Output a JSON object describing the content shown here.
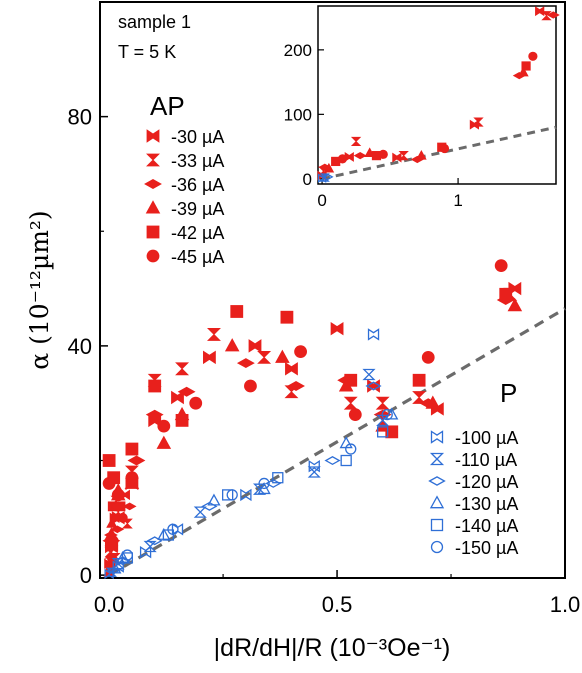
{
  "chart_data": [
    {
      "type": "scatter",
      "title": "",
      "annotations": [
        "sample 1",
        "T = 5 K"
      ],
      "xlabel": "|dR/dH|/R (10⁻³Oe⁻¹)",
      "ylabel": "α (10⁻¹²µm²)",
      "xlim": [
        -0.02,
        1.0
      ],
      "ylim": [
        -0.5,
        100
      ],
      "xticks": [
        0.0,
        0.5,
        1.0
      ],
      "xtick_labels": [
        "0.0",
        "0.5",
        "1.0"
      ],
      "yticks": [
        0,
        40,
        80
      ],
      "ytick_labels": [
        "0",
        "40",
        "80"
      ],
      "grid": false,
      "colors": {
        "AP": "#e8201c",
        "P": "#2f6fd6",
        "fit": "#6b6b6b"
      },
      "legend_groups": [
        {
          "title": "AP",
          "entries": [
            {
              "label": "-30 µA",
              "marker": "bowtie-v-filled"
            },
            {
              "label": "-33 µA",
              "marker": "hourglass-filled"
            },
            {
              "label": "-36 µA",
              "marker": "diamond-filled"
            },
            {
              "label": "-39 µA",
              "marker": "triangle-filled"
            },
            {
              "label": "-42 µA",
              "marker": "square-filled"
            },
            {
              "label": "-45 µA",
              "marker": "circle-filled"
            }
          ]
        },
        {
          "title": "P",
          "entries": [
            {
              "label": "-100 µA",
              "marker": "bowtie-v-open"
            },
            {
              "label": "-110 µA",
              "marker": "hourglass-open"
            },
            {
              "label": "-120 µA",
              "marker": "diamond-open"
            },
            {
              "label": "-130 µA",
              "marker": "triangle-open"
            },
            {
              "label": "-140 µA",
              "marker": "square-open"
            },
            {
              "label": "-150 µA",
              "marker": "circle-open"
            }
          ]
        }
      ],
      "fit_line": {
        "style": "dashed",
        "x": [
          0.0,
          1.0
        ],
        "y": [
          0.0,
          46.5
        ]
      },
      "series": [
        {
          "name": "-30 µA",
          "group": "AP",
          "points": [
            [
              0.005,
              5
            ],
            [
              0.02,
              10
            ],
            [
              0.05,
              16
            ],
            [
              0.1,
              27
            ],
            [
              0.15,
              31
            ],
            [
              0.22,
              38
            ],
            [
              0.32,
              40
            ],
            [
              0.4,
              36
            ],
            [
              0.5,
              43
            ],
            [
              0.58,
              33
            ],
            [
              0.72,
              29
            ],
            [
              0.89,
              50
            ]
          ]
        },
        {
          "name": "-33 µA",
          "group": "AP",
          "points": [
            [
              0.005,
              4
            ],
            [
              0.02,
              11
            ],
            [
              0.05,
              18
            ],
            [
              0.1,
              34
            ],
            [
              0.16,
              36
            ],
            [
              0.23,
              42
            ],
            [
              0.34,
              38
            ],
            [
              0.4,
              32
            ],
            [
              0.53,
              30
            ],
            [
              0.6,
              30
            ],
            [
              0.68,
              31
            ],
            [
              0.88,
              49
            ]
          ]
        },
        {
          "name": "-36 µA",
          "group": "AP",
          "points": [
            [
              0.005,
              6
            ],
            [
              0.02,
              12
            ],
            [
              0.06,
              20
            ],
            [
              0.1,
              28
            ],
            [
              0.17,
              32
            ],
            [
              0.3,
              37
            ],
            [
              0.41,
              33
            ],
            [
              0.52,
              34
            ],
            [
              0.6,
              28
            ],
            [
              0.7,
              30
            ],
            [
              0.87,
              48
            ]
          ]
        },
        {
          "name": "-39 µA",
          "group": "AP",
          "points": [
            [
              0.005,
              7
            ],
            [
              0.02,
              14
            ],
            [
              0.05,
              16
            ],
            [
              0.12,
              23
            ],
            [
              0.16,
              28
            ],
            [
              0.27,
              40
            ],
            [
              0.38,
              38
            ],
            [
              0.52,
              33
            ],
            [
              0.6,
              26
            ],
            [
              0.71,
              30
            ],
            [
              0.89,
              47
            ]
          ]
        },
        {
          "name": "-42 µA",
          "group": "AP",
          "points": [
            [
              0.0,
              20
            ],
            [
              0.01,
              17
            ],
            [
              0.05,
              22
            ],
            [
              0.1,
              33
            ],
            [
              0.16,
              27
            ],
            [
              0.28,
              46
            ],
            [
              0.39,
              45
            ],
            [
              0.53,
              34
            ],
            [
              0.62,
              25
            ],
            [
              0.68,
              34
            ],
            [
              0.87,
              49
            ]
          ]
        },
        {
          "name": "-45 µA",
          "group": "AP",
          "points": [
            [
              0.0,
              16
            ],
            [
              0.02,
              14
            ],
            [
              0.05,
              17
            ],
            [
              0.12,
              26
            ],
            [
              0.19,
              30
            ],
            [
              0.31,
              33
            ],
            [
              0.42,
              39
            ],
            [
              0.54,
              28
            ],
            [
              0.7,
              38
            ],
            [
              0.86,
              54
            ]
          ]
        },
        {
          "name": "-100 µA",
          "group": "P",
          "points": [
            [
              0.02,
              1.5
            ],
            [
              0.08,
              4
            ],
            [
              0.15,
              8
            ],
            [
              0.3,
              14
            ],
            [
              0.45,
              19
            ],
            [
              0.58,
              42
            ]
          ]
        },
        {
          "name": "-110 µA",
          "group": "P",
          "points": [
            [
              0.02,
              2
            ],
            [
              0.09,
              5
            ],
            [
              0.2,
              11
            ],
            [
              0.33,
              15
            ],
            [
              0.45,
              18
            ],
            [
              0.57,
              35
            ],
            [
              0.6,
              27
            ]
          ]
        },
        {
          "name": "-120 µA",
          "group": "P",
          "points": [
            [
              0.03,
              2.5
            ],
            [
              0.1,
              6
            ],
            [
              0.22,
              12
            ],
            [
              0.36,
              16
            ],
            [
              0.49,
              20
            ],
            [
              0.58,
              33
            ]
          ]
        },
        {
          "name": "-130 µA",
          "group": "P",
          "points": [
            [
              0.03,
              3
            ],
            [
              0.12,
              7
            ],
            [
              0.23,
              13
            ],
            [
              0.34,
              15
            ],
            [
              0.52,
              23
            ],
            [
              0.62,
              28
            ]
          ]
        },
        {
          "name": "-140 µA",
          "group": "P",
          "points": [
            [
              0.04,
              3
            ],
            [
              0.13,
              7
            ],
            [
              0.26,
              14
            ],
            [
              0.37,
              17
            ],
            [
              0.52,
              20
            ],
            [
              0.6,
              25
            ]
          ]
        },
        {
          "name": "-150 µA",
          "group": "P",
          "points": [
            [
              0.04,
              3.5
            ],
            [
              0.14,
              8
            ],
            [
              0.27,
              14
            ],
            [
              0.34,
              16
            ],
            [
              0.53,
              22
            ],
            [
              0.61,
              28
            ]
          ]
        }
      ]
    },
    {
      "type": "scatter",
      "title": "inset",
      "xlim": [
        -0.03,
        1.72
      ],
      "ylim": [
        -8,
        268
      ],
      "xticks": [
        0,
        1
      ],
      "xtick_labels": [
        "0",
        "1"
      ],
      "yticks": [
        0,
        100,
        200
      ],
      "ytick_labels": [
        "0",
        "100",
        "200"
      ],
      "fit_line": {
        "style": "dashed",
        "x": [
          0.0,
          1.72
        ],
        "y": [
          0.0,
          80.0
        ]
      },
      "series": [
        {
          "name": "AP",
          "points": [
            [
              0.0,
              5
            ],
            [
              0.01,
              12
            ],
            [
              0.02,
              18
            ],
            [
              0.05,
              16
            ],
            [
              0.1,
              27
            ],
            [
              0.15,
              31
            ],
            [
              0.2,
              34
            ],
            [
              0.25,
              58
            ],
            [
              0.28,
              36
            ],
            [
              0.35,
              40
            ],
            [
              0.4,
              36
            ],
            [
              0.45,
              38
            ],
            [
              0.55,
              33
            ],
            [
              0.6,
              36
            ],
            [
              0.7,
              30
            ],
            [
              0.73,
              36
            ],
            [
              0.88,
              49
            ],
            [
              0.9,
              47
            ],
            [
              1.12,
              84
            ],
            [
              1.15,
              88
            ],
            [
              1.45,
              160
            ],
            [
              1.48,
              165
            ],
            [
              1.5,
              175
            ],
            [
              1.55,
              190
            ],
            [
              1.6,
              260
            ],
            [
              1.65,
              253
            ],
            [
              1.7,
              254
            ]
          ]
        }
      ]
    }
  ]
}
